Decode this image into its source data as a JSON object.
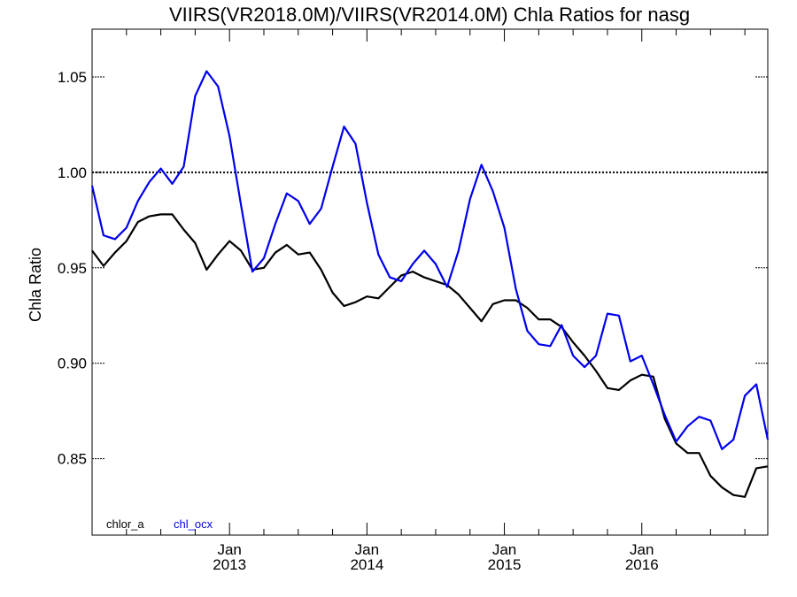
{
  "chart_data": {
    "type": "line",
    "title": "VIIRS(VR2018.0M)/VIIRS(VR2014.0M)  Chla Ratios for nasg",
    "ylabel": "Chla Ratio",
    "xlabel": "",
    "xlim": [
      "2012-01-01",
      "2016-12-01"
    ],
    "ylim": [
      0.81,
      1.075
    ],
    "yticks": [
      0.85,
      0.9,
      0.95,
      1.0,
      1.05
    ],
    "ytick_labels": [
      "0.85",
      "0.90",
      "0.95",
      "1.00",
      "1.05"
    ],
    "xticks": [
      {
        "date": "2013-01-01",
        "month": "Jan",
        "year": "2013"
      },
      {
        "date": "2014-01-01",
        "month": "Jan",
        "year": "2014"
      },
      {
        "date": "2015-01-01",
        "month": "Jan",
        "year": "2015"
      },
      {
        "date": "2016-01-01",
        "month": "Jan",
        "year": "2016"
      }
    ],
    "reference_line": {
      "y": 1.0,
      "style": "dotted",
      "color": "#000000"
    },
    "legend_position": "bottom-left",
    "x": [
      "2012-01",
      "2012-02",
      "2012-03",
      "2012-04",
      "2012-05",
      "2012-06",
      "2012-07",
      "2012-08",
      "2012-09",
      "2012-10",
      "2012-11",
      "2012-12",
      "2013-01",
      "2013-02",
      "2013-03",
      "2013-04",
      "2013-05",
      "2013-06",
      "2013-07",
      "2013-08",
      "2013-09",
      "2013-10",
      "2013-11",
      "2013-12",
      "2014-01",
      "2014-02",
      "2014-03",
      "2014-04",
      "2014-05",
      "2014-06",
      "2014-07",
      "2014-08",
      "2014-09",
      "2014-10",
      "2014-11",
      "2014-12",
      "2015-01",
      "2015-02",
      "2015-03",
      "2015-04",
      "2015-05",
      "2015-06",
      "2015-07",
      "2015-08",
      "2015-09",
      "2015-10",
      "2015-11",
      "2015-12",
      "2016-01",
      "2016-02",
      "2016-03",
      "2016-04",
      "2016-05",
      "2016-06",
      "2016-07",
      "2016-08",
      "2016-09",
      "2016-10",
      "2016-11",
      "2016-12"
    ],
    "series": [
      {
        "name": "chlor_a",
        "color": "#000000",
        "values": [
          0.959,
          0.951,
          0.958,
          0.964,
          0.974,
          0.977,
          0.978,
          0.978,
          0.97,
          0.963,
          0.949,
          0.957,
          0.964,
          0.959,
          0.949,
          0.95,
          0.958,
          0.962,
          0.957,
          0.958,
          0.949,
          0.937,
          0.93,
          0.932,
          0.935,
          0.934,
          0.94,
          0.946,
          0.948,
          0.945,
          0.943,
          0.941,
          0.936,
          0.929,
          0.922,
          0.931,
          0.933,
          0.933,
          0.929,
          0.923,
          0.923,
          0.919,
          0.911,
          0.904,
          0.896,
          0.887,
          0.886,
          0.891,
          0.894,
          0.893,
          0.871,
          0.858,
          0.853,
          0.853,
          0.841,
          0.835,
          0.831,
          0.83,
          0.845,
          0.846
        ]
      },
      {
        "name": "chl_ocx",
        "color": "#0000ee",
        "values": [
          0.993,
          0.967,
          0.965,
          0.971,
          0.985,
          0.995,
          1.002,
          0.994,
          1.003,
          1.04,
          1.053,
          1.045,
          1.019,
          0.983,
          0.948,
          0.955,
          0.973,
          0.989,
          0.985,
          0.973,
          0.981,
          1.003,
          1.024,
          1.015,
          0.984,
          0.957,
          0.945,
          0.943,
          0.952,
          0.959,
          0.952,
          0.94,
          0.959,
          0.986,
          1.004,
          0.99,
          0.971,
          0.939,
          0.917,
          0.91,
          0.909,
          0.92,
          0.904,
          0.898,
          0.904,
          0.926,
          0.925,
          0.901,
          0.904,
          0.889,
          0.873,
          0.859,
          0.867,
          0.872,
          0.87,
          0.855,
          0.86,
          0.883,
          0.889,
          0.86
        ]
      }
    ]
  }
}
